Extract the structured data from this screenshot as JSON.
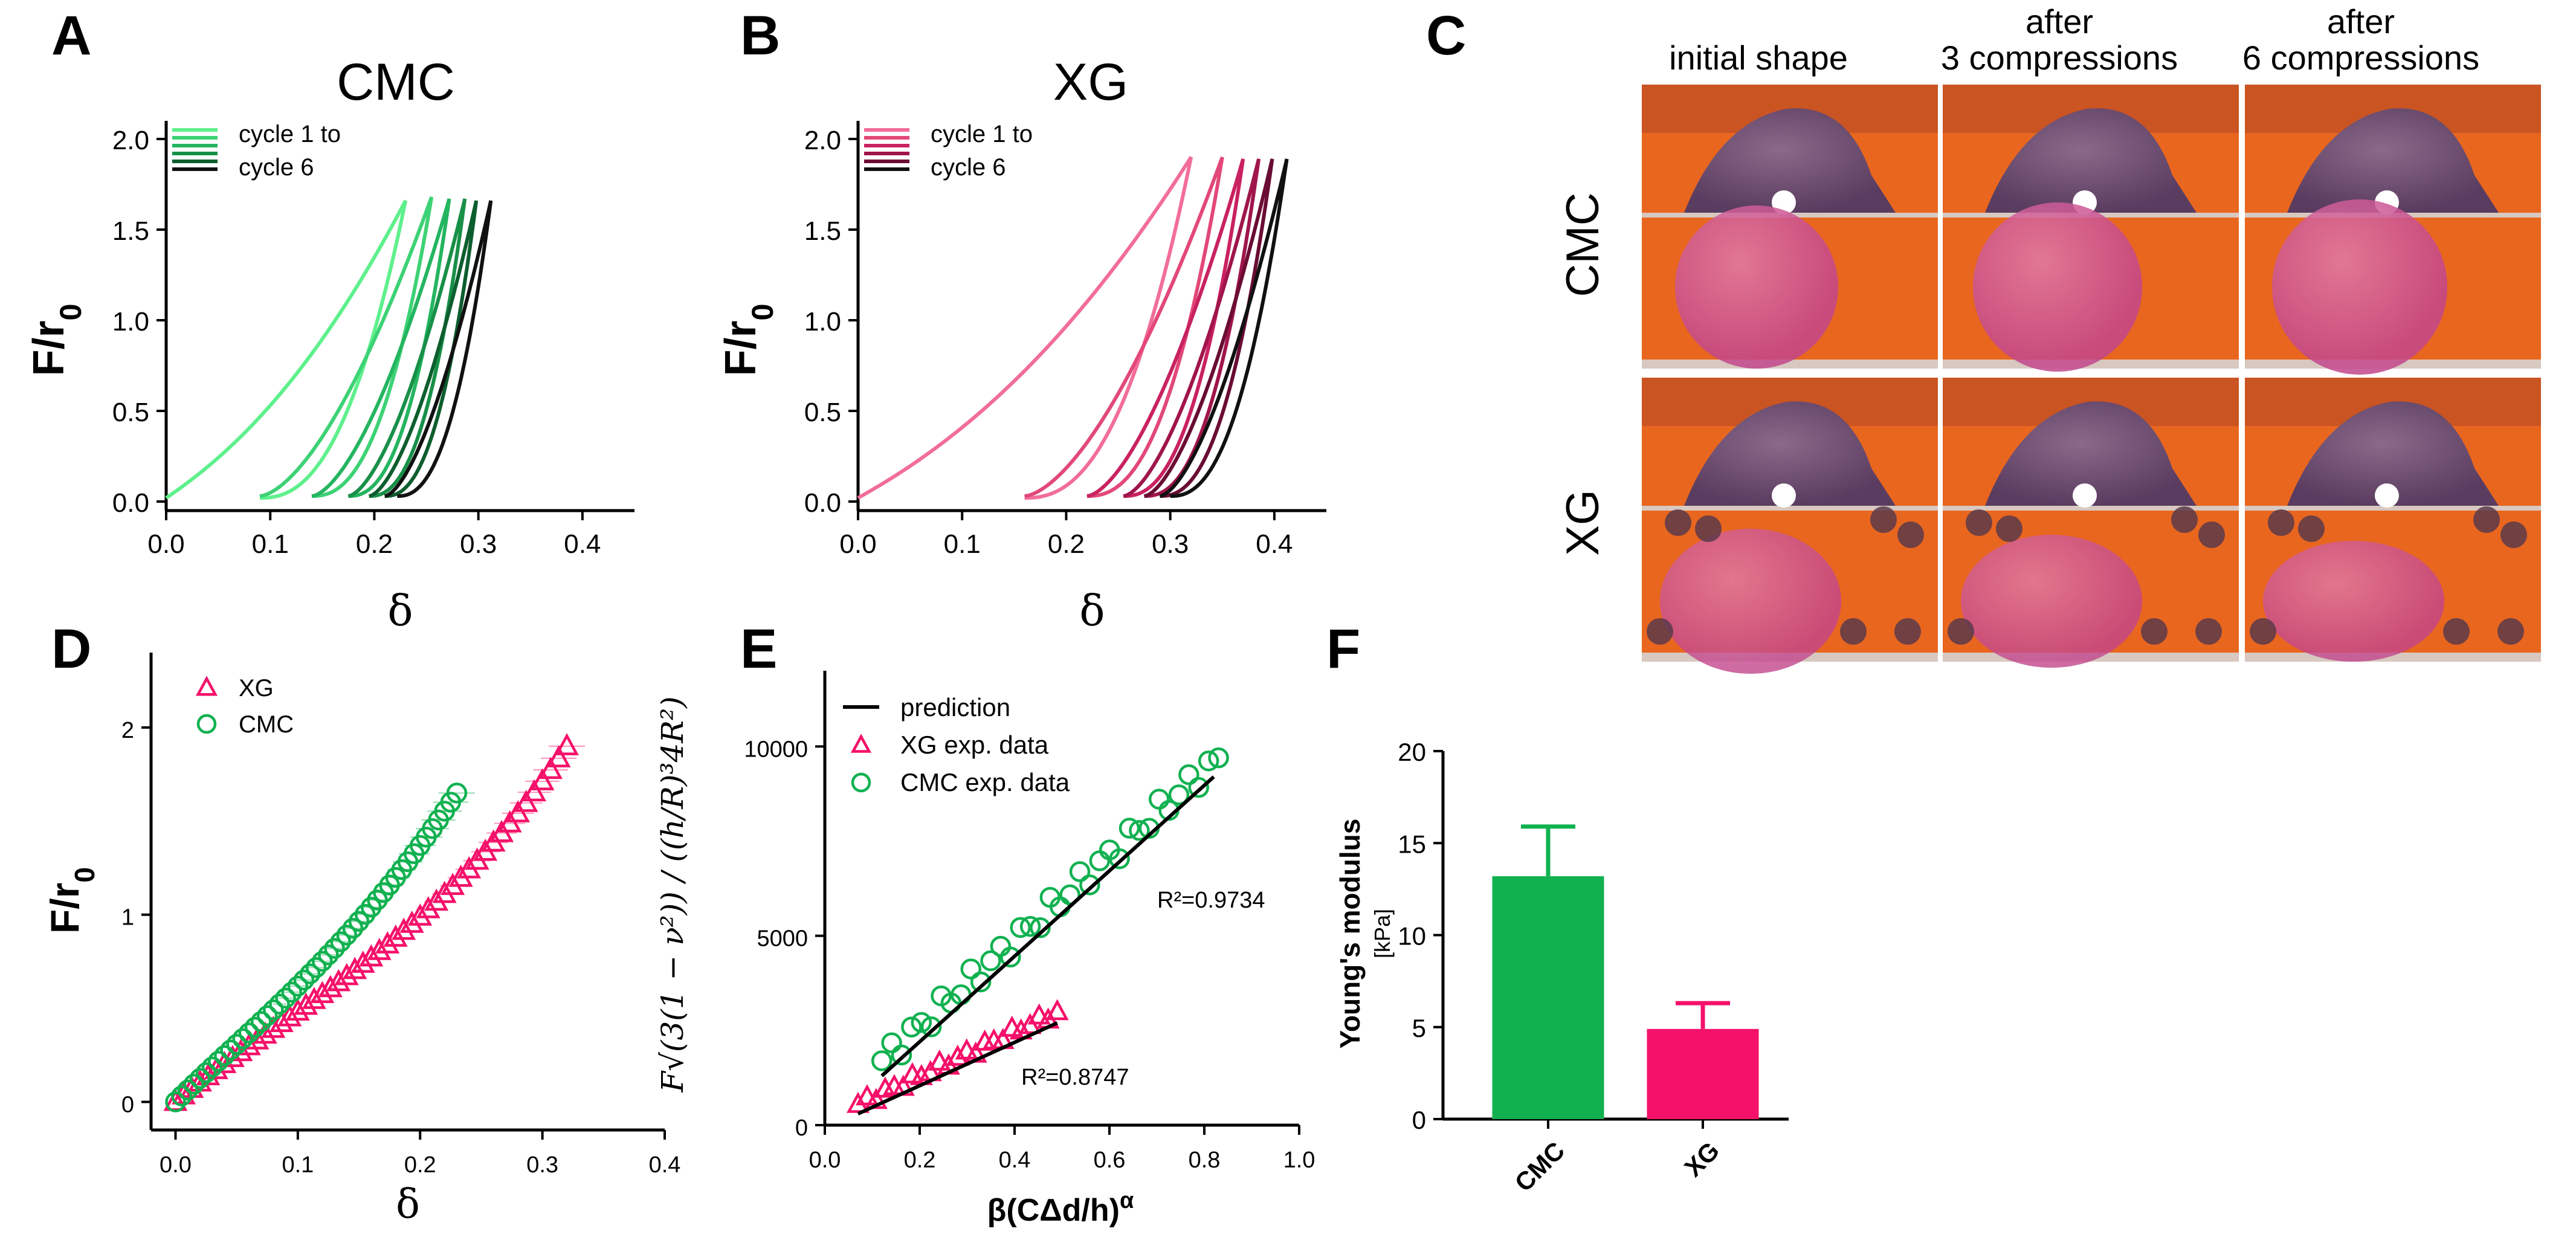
{
  "panels": {
    "a_letter": "A",
    "b_letter": "B",
    "c_letter": "C",
    "d_letter": "D",
    "e_letter": "E",
    "f_letter": "F"
  },
  "photos": {
    "col_headers": [
      {
        "line1": "initial shape",
        "line2": ""
      },
      {
        "line1": "after",
        "line2": "3 compressions"
      },
      {
        "line1": "after",
        "line2": "6 compressions"
      }
    ],
    "row_labels": [
      "CMC",
      "XG"
    ]
  },
  "colors": {
    "cmc_cycles": [
      "#5ef08c",
      "#3dd275",
      "#24b560",
      "#189048",
      "#0d5e2e",
      "#111111"
    ],
    "xg_cycles": [
      "#f26d9a",
      "#e24878",
      "#c92260",
      "#a0154c",
      "#6a0c34",
      "#111111"
    ],
    "cmc": "#11b150",
    "xg": "#f5116a",
    "fit": "#000000",
    "photo_orange": "#e9661f",
    "photo_magenta": "#c8589c"
  },
  "chart_data": [
    {
      "id": "A",
      "type": "line",
      "title": "CMC",
      "xlabel": "δ",
      "ylabel": "F/r0",
      "xlim": [
        0,
        0.45
      ],
      "ylim": [
        -0.05,
        2.1
      ],
      "xticks": [
        0.0,
        0.1,
        0.2,
        0.3,
        0.4
      ],
      "yticks": [
        0.0,
        0.5,
        1.0,
        1.5,
        2.0
      ],
      "legend": [
        "cycle 1 to",
        "cycle 6"
      ],
      "cycles": [
        {
          "name": "cycle 1",
          "d0": 0.0,
          "dpeak": 0.23,
          "dend": 0.09,
          "fmax": 1.66
        },
        {
          "name": "cycle 2",
          "d0": 0.09,
          "dpeak": 0.255,
          "dend": 0.14,
          "fmax": 1.68
        },
        {
          "name": "cycle 3",
          "d0": 0.14,
          "dpeak": 0.272,
          "dend": 0.175,
          "fmax": 1.67
        },
        {
          "name": "cycle 4",
          "d0": 0.175,
          "dpeak": 0.287,
          "dend": 0.195,
          "fmax": 1.67
        },
        {
          "name": "cycle 5",
          "d0": 0.195,
          "dpeak": 0.298,
          "dend": 0.21,
          "fmax": 1.66
        },
        {
          "name": "cycle 6",
          "d0": 0.21,
          "dpeak": 0.312,
          "dend": 0.222,
          "fmax": 1.66
        }
      ]
    },
    {
      "id": "B",
      "type": "line",
      "title": "XG",
      "xlabel": "δ",
      "ylabel": "F/r0",
      "xlim": [
        0,
        0.45
      ],
      "ylim": [
        -0.05,
        2.1
      ],
      "xticks": [
        0.0,
        0.1,
        0.2,
        0.3,
        0.4
      ],
      "yticks": [
        0.0,
        0.5,
        1.0,
        1.5,
        2.0
      ],
      "legend": [
        "cycle 1 to",
        "cycle 6"
      ],
      "cycles": [
        {
          "name": "cycle 1",
          "d0": 0.0,
          "dpeak": 0.32,
          "dend": 0.16,
          "fmax": 1.9
        },
        {
          "name": "cycle 2",
          "d0": 0.16,
          "dpeak": 0.35,
          "dend": 0.22,
          "fmax": 1.9
        },
        {
          "name": "cycle 3",
          "d0": 0.22,
          "dpeak": 0.37,
          "dend": 0.255,
          "fmax": 1.89
        },
        {
          "name": "cycle 4",
          "d0": 0.255,
          "dpeak": 0.385,
          "dend": 0.275,
          "fmax": 1.89
        },
        {
          "name": "cycle 5",
          "d0": 0.275,
          "dpeak": 0.398,
          "dend": 0.29,
          "fmax": 1.89
        },
        {
          "name": "cycle 6",
          "d0": 0.29,
          "dpeak": 0.412,
          "dend": 0.3,
          "fmax": 1.89
        }
      ]
    },
    {
      "id": "D",
      "type": "scatter",
      "xlabel": "δ",
      "ylabel": "F/r0",
      "xlim": [
        -0.02,
        0.4
      ],
      "ylim": [
        -0.15,
        2.4
      ],
      "xticks": [
        0.0,
        0.1,
        0.2,
        0.3,
        0.4
      ],
      "yticks": [
        0,
        1,
        2
      ],
      "series": [
        {
          "name": "XG",
          "marker": "triangle",
          "dmax": 0.32,
          "fmax": 1.9,
          "k1": 0.5,
          "k2": 0.85,
          "p": 3
        },
        {
          "name": "CMC",
          "marker": "circle",
          "dmax": 0.23,
          "fmax": 1.65,
          "k1": 0.5,
          "k2": 0.6,
          "p": 2.5
        }
      ]
    },
    {
      "id": "E",
      "type": "scatter",
      "xlabel": "β(CΔd/h)α",
      "ylabel": "F√(3(1 − ν²)) / ((h/R)³4R²)",
      "xlim": [
        0.0,
        1.0
      ],
      "ylim": [
        0,
        12000
      ],
      "xticks": [
        0.0,
        0.2,
        0.4,
        0.6,
        0.8,
        1.0
      ],
      "yticks": [
        0,
        5000,
        10000
      ],
      "legend": [
        "prediction",
        "XG exp. data",
        "CMC exp. data"
      ],
      "series": [
        {
          "name": "CMC exp. data",
          "marker": "circle",
          "x0": 0.12,
          "x1": 0.83,
          "y0": 1700,
          "y1": 9700,
          "fit": {
            "x": [
              0.12,
              0.82
            ],
            "y": [
              1300,
              9200
            ],
            "r2": "R²=0.9734"
          }
        },
        {
          "name": "XG exp. data",
          "marker": "triangle",
          "x0": 0.07,
          "x1": 0.49,
          "y0": 550,
          "y1": 3000,
          "fit": {
            "x": [
              0.07,
              0.49
            ],
            "y": [
              300,
              2700
            ],
            "r2": "R²=0.8747"
          }
        }
      ]
    },
    {
      "id": "F",
      "type": "bar",
      "ylabel": "Young's modulus",
      "yunit": "[kPa]",
      "categories": [
        "CMC",
        "XG"
      ],
      "values": [
        13.2,
        4.9
      ],
      "errors": [
        2.7,
        1.4
      ],
      "ylim": [
        0,
        20
      ],
      "yticks": [
        0,
        5,
        10,
        15,
        20
      ]
    }
  ]
}
